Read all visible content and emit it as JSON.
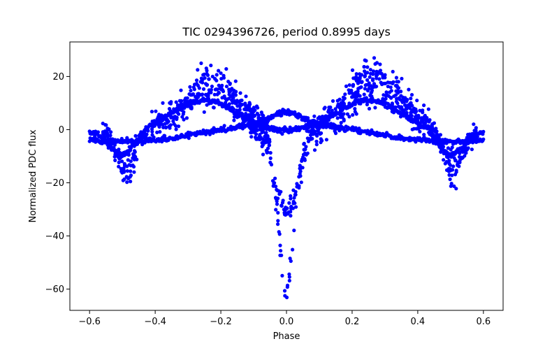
{
  "chart_data": {
    "type": "scatter",
    "title": "TIC 0294396726, period 0.8995 days",
    "xlabel": "Phase",
    "ylabel": "Normalized PDC flux",
    "xlim": [
      -0.66,
      0.66
    ],
    "ylim": [
      -68,
      33
    ],
    "xticks": [
      -0.6,
      -0.4,
      -0.2,
      0.0,
      0.2,
      0.4,
      0.6
    ],
    "xtick_labels": [
      "−0.6",
      "−0.4",
      "−0.2",
      "0.0",
      "0.2",
      "0.4",
      "0.6"
    ],
    "yticks": [
      -60,
      -40,
      -20,
      0,
      20
    ],
    "ytick_labels": [
      "−60",
      "−40",
      "−20",
      "0",
      "20"
    ],
    "grid": false,
    "marker_color": "#0000ff",
    "phase_range": [
      -0.6,
      0.6
    ],
    "components": [
      {
        "shape": "wave",
        "mean": 2.5,
        "amplitude": -3.5,
        "phase_center": 0.0,
        "point_count": 600
      },
      {
        "shape": "wave",
        "mean": 2.5,
        "amplitude": 3.5,
        "phase_center": 0.0,
        "point_count": 600
      },
      {
        "shape": "dip",
        "phase_center": 0.0,
        "depth": -31,
        "point_count": 120
      },
      {
        "shape": "dip",
        "phase_center": 0.0,
        "depth": -60,
        "point_count": 90
      },
      {
        "shape": "hump",
        "phase_center": -0.23,
        "peak": 21,
        "point_count": 350
      },
      {
        "shape": "hump",
        "phase_center": 0.27,
        "peak": 24,
        "point_count": 350
      },
      {
        "shape": "trough",
        "phase_center": -0.49,
        "minimum": -20,
        "point_count": 120
      },
      {
        "shape": "trough",
        "phase_center": 0.51,
        "minimum": -20,
        "point_count": 120
      }
    ]
  }
}
